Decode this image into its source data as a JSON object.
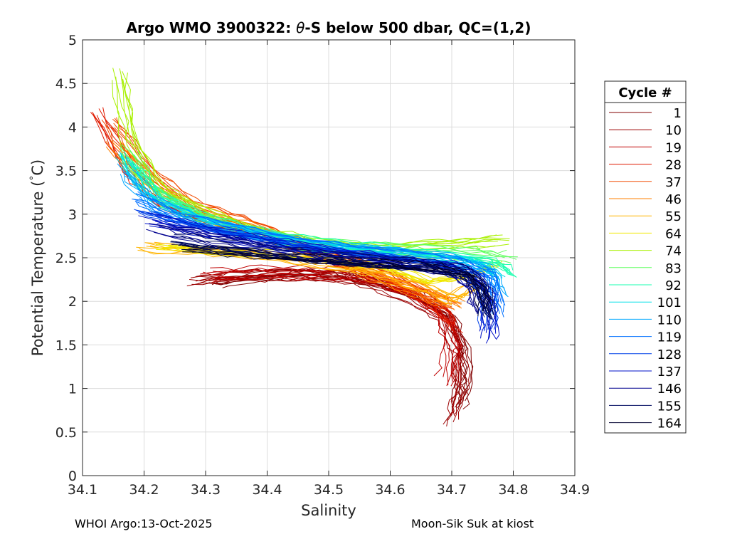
{
  "chart_data": {
    "type": "line",
    "title_prefix": "Argo WMO 3900322: ",
    "title_theta": "θ",
    "title_suffix": "-S below 500 dbar,  QC=(1,2)",
    "xlabel": "Salinity",
    "ylabel_main": "Potential Temperature (",
    "ylabel_deg": "°",
    "ylabel_unit": "C)",
    "xlim": [
      34.1,
      34.9
    ],
    "ylim": [
      0,
      5
    ],
    "x_ticks": [
      "34.1",
      "34.2",
      "34.3",
      "34.4",
      "34.5",
      "34.6",
      "34.7",
      "34.8",
      "34.9"
    ],
    "y_ticks": [
      "0",
      "0.5",
      "1",
      "1.5",
      "2",
      "2.5",
      "3",
      "3.5",
      "4",
      "4.5",
      "5"
    ],
    "grid": true,
    "legend_position": "outside-right",
    "legend_title": "Cycle #",
    "legend": [
      {
        "label": "1",
        "color": "#800000"
      },
      {
        "label": "10",
        "color": "#9b0000"
      },
      {
        "label": "19",
        "color": "#bf0000"
      },
      {
        "label": "28",
        "color": "#e01a00"
      },
      {
        "label": "37",
        "color": "#f24a00"
      },
      {
        "label": "46",
        "color": "#ff7f00"
      },
      {
        "label": "55",
        "color": "#ffb400"
      },
      {
        "label": "64",
        "color": "#f0e800"
      },
      {
        "label": "74",
        "color": "#a8f000"
      },
      {
        "label": "83",
        "color": "#5fff5f"
      },
      {
        "label": "92",
        "color": "#1affb0"
      },
      {
        "label": "101",
        "color": "#00e0e8"
      },
      {
        "label": "110",
        "color": "#00a8ff"
      },
      {
        "label": "119",
        "color": "#0070ff"
      },
      {
        "label": "128",
        "color": "#0040e8"
      },
      {
        "label": "137",
        "color": "#0010c8"
      },
      {
        "label": "146",
        "color": "#00008f"
      },
      {
        "label": "155",
        "color": "#000a60"
      },
      {
        "label": "164",
        "color": "#000030"
      }
    ],
    "series": [
      {
        "name": "1",
        "color": "#800000",
        "profiles": 8,
        "points": [
          [
            34.31,
            2.2
          ],
          [
            34.38,
            2.27
          ],
          [
            34.45,
            2.3
          ],
          [
            34.52,
            2.28
          ],
          [
            34.58,
            2.2
          ],
          [
            34.64,
            2.05
          ],
          [
            34.69,
            1.85
          ],
          [
            34.715,
            1.5
          ],
          [
            34.72,
            1.1
          ],
          [
            34.71,
            0.8
          ]
        ]
      },
      {
        "name": "10",
        "color": "#9b0000",
        "profiles": 8,
        "points": [
          [
            34.28,
            2.25
          ],
          [
            34.36,
            2.3
          ],
          [
            34.44,
            2.32
          ],
          [
            34.52,
            2.3
          ],
          [
            34.58,
            2.22
          ],
          [
            34.64,
            2.05
          ],
          [
            34.69,
            1.85
          ],
          [
            34.715,
            1.45
          ],
          [
            34.715,
            1.0
          ],
          [
            34.7,
            0.65
          ]
        ]
      },
      {
        "name": "19",
        "color": "#bf0000",
        "profiles": 8,
        "points": [
          [
            34.3,
            2.3
          ],
          [
            34.38,
            2.33
          ],
          [
            34.46,
            2.33
          ],
          [
            34.53,
            2.3
          ],
          [
            34.6,
            2.2
          ],
          [
            34.65,
            2.05
          ],
          [
            34.69,
            1.8
          ],
          [
            34.7,
            1.45
          ],
          [
            34.69,
            1.1
          ]
        ]
      },
      {
        "name": "28",
        "color": "#e01a00",
        "profiles": 8,
        "points": [
          [
            34.13,
            4.15
          ],
          [
            34.18,
            3.5
          ],
          [
            34.24,
            3.1
          ],
          [
            34.32,
            2.9
          ],
          [
            34.4,
            2.75
          ],
          [
            34.48,
            2.55
          ],
          [
            34.56,
            2.35
          ],
          [
            34.63,
            2.15
          ],
          [
            34.68,
            1.95
          ],
          [
            34.71,
            1.7
          ]
        ]
      },
      {
        "name": "37",
        "color": "#f24a00",
        "profiles": 8,
        "points": [
          [
            34.14,
            4.05
          ],
          [
            34.2,
            3.5
          ],
          [
            34.27,
            3.1
          ],
          [
            34.35,
            2.92
          ],
          [
            34.42,
            2.72
          ],
          [
            34.5,
            2.52
          ],
          [
            34.58,
            2.32
          ],
          [
            34.64,
            2.12
          ],
          [
            34.69,
            1.95
          ]
        ]
      },
      {
        "name": "46",
        "color": "#ff7f00",
        "profiles": 8,
        "points": [
          [
            34.15,
            3.8
          ],
          [
            34.22,
            3.3
          ],
          [
            34.3,
            3.0
          ],
          [
            34.38,
            2.82
          ],
          [
            34.46,
            2.6
          ],
          [
            34.54,
            2.4
          ],
          [
            34.61,
            2.2
          ],
          [
            34.67,
            2.05
          ],
          [
            34.71,
            1.95
          ]
        ]
      },
      {
        "name": "55",
        "color": "#ffb400",
        "profiles": 8,
        "points": [
          [
            34.2,
            2.65
          ],
          [
            34.3,
            2.6
          ],
          [
            34.4,
            2.55
          ],
          [
            34.5,
            2.45
          ],
          [
            34.58,
            2.35
          ],
          [
            34.65,
            2.2
          ],
          [
            34.7,
            2.05
          ],
          [
            34.74,
            2.2
          ]
        ]
      },
      {
        "name": "64",
        "color": "#f0e800",
        "profiles": 8,
        "points": [
          [
            34.22,
            2.6
          ],
          [
            34.32,
            2.55
          ],
          [
            34.42,
            2.5
          ],
          [
            34.52,
            2.42
          ],
          [
            34.6,
            2.35
          ],
          [
            34.66,
            2.2
          ],
          [
            34.72,
            2.25
          ],
          [
            34.77,
            2.4
          ]
        ]
      },
      {
        "name": "74",
        "color": "#a8f000",
        "profiles": 8,
        "points": [
          [
            34.16,
            4.6
          ],
          [
            34.18,
            3.8
          ],
          [
            34.22,
            3.3
          ],
          [
            34.3,
            3.0
          ],
          [
            34.38,
            2.8
          ],
          [
            34.48,
            2.65
          ],
          [
            34.58,
            2.6
          ],
          [
            34.68,
            2.65
          ],
          [
            34.78,
            2.7
          ]
        ]
      },
      {
        "name": "83",
        "color": "#5fff5f",
        "profiles": 8,
        "points": [
          [
            34.17,
            3.75
          ],
          [
            34.21,
            3.3
          ],
          [
            34.28,
            3.0
          ],
          [
            34.36,
            2.82
          ],
          [
            34.45,
            2.68
          ],
          [
            34.55,
            2.62
          ],
          [
            34.65,
            2.58
          ],
          [
            34.74,
            2.55
          ],
          [
            34.79,
            2.5
          ]
        ]
      },
      {
        "name": "92",
        "color": "#1affb0",
        "profiles": 8,
        "points": [
          [
            34.17,
            3.6
          ],
          [
            34.22,
            3.2
          ],
          [
            34.29,
            2.95
          ],
          [
            34.38,
            2.78
          ],
          [
            34.48,
            2.65
          ],
          [
            34.58,
            2.58
          ],
          [
            34.68,
            2.52
          ],
          [
            34.76,
            2.45
          ],
          [
            34.79,
            2.3
          ]
        ]
      },
      {
        "name": "101",
        "color": "#00e0e8",
        "profiles": 8,
        "points": [
          [
            34.17,
            3.65
          ],
          [
            34.21,
            3.2
          ],
          [
            34.28,
            2.95
          ],
          [
            34.37,
            2.78
          ],
          [
            34.47,
            2.65
          ],
          [
            34.57,
            2.57
          ],
          [
            34.67,
            2.5
          ],
          [
            34.75,
            2.42
          ],
          [
            34.78,
            2.25
          ]
        ]
      },
      {
        "name": "110",
        "color": "#00a8ff",
        "profiles": 8,
        "points": [
          [
            34.17,
            3.5
          ],
          [
            34.22,
            3.1
          ],
          [
            34.3,
            2.9
          ],
          [
            34.4,
            2.74
          ],
          [
            34.5,
            2.62
          ],
          [
            34.6,
            2.55
          ],
          [
            34.7,
            2.48
          ],
          [
            34.76,
            2.38
          ],
          [
            34.78,
            2.1
          ]
        ]
      },
      {
        "name": "119",
        "color": "#0070ff",
        "profiles": 8,
        "points": [
          [
            34.18,
            3.2
          ],
          [
            34.24,
            2.98
          ],
          [
            34.32,
            2.85
          ],
          [
            34.42,
            2.7
          ],
          [
            34.52,
            2.6
          ],
          [
            34.62,
            2.52
          ],
          [
            34.7,
            2.45
          ],
          [
            34.76,
            2.3
          ],
          [
            34.77,
            1.9
          ]
        ]
      },
      {
        "name": "128",
        "color": "#0040e8",
        "profiles": 8,
        "points": [
          [
            34.2,
            3.05
          ],
          [
            34.27,
            2.9
          ],
          [
            34.36,
            2.78
          ],
          [
            34.46,
            2.65
          ],
          [
            34.56,
            2.55
          ],
          [
            34.66,
            2.45
          ],
          [
            34.73,
            2.35
          ],
          [
            34.76,
            2.1
          ],
          [
            34.76,
            1.7
          ]
        ]
      },
      {
        "name": "137",
        "color": "#0010c8",
        "profiles": 8,
        "points": [
          [
            34.21,
            2.95
          ],
          [
            34.3,
            2.8
          ],
          [
            34.4,
            2.68
          ],
          [
            34.5,
            2.56
          ],
          [
            34.6,
            2.47
          ],
          [
            34.69,
            2.4
          ],
          [
            34.74,
            2.25
          ],
          [
            34.76,
            1.95
          ],
          [
            34.76,
            1.6
          ]
        ]
      },
      {
        "name": "146",
        "color": "#00008f",
        "profiles": 8,
        "points": [
          [
            34.22,
            2.85
          ],
          [
            34.32,
            2.72
          ],
          [
            34.42,
            2.6
          ],
          [
            34.52,
            2.5
          ],
          [
            34.62,
            2.44
          ],
          [
            34.7,
            2.38
          ],
          [
            34.74,
            2.2
          ],
          [
            34.75,
            1.9
          ]
        ]
      },
      {
        "name": "155",
        "color": "#000a60",
        "profiles": 8,
        "points": [
          [
            34.25,
            2.72
          ],
          [
            34.35,
            2.62
          ],
          [
            34.45,
            2.53
          ],
          [
            34.55,
            2.47
          ],
          [
            34.65,
            2.42
          ],
          [
            34.72,
            2.35
          ],
          [
            34.75,
            2.15
          ],
          [
            34.76,
            1.85
          ]
        ]
      },
      {
        "name": "164",
        "color": "#000030",
        "profiles": 8,
        "points": [
          [
            34.27,
            2.62
          ],
          [
            34.37,
            2.56
          ],
          [
            34.47,
            2.5
          ],
          [
            34.57,
            2.46
          ],
          [
            34.66,
            2.42
          ],
          [
            34.72,
            2.35
          ],
          [
            34.75,
            2.2
          ],
          [
            34.76,
            1.9
          ]
        ]
      }
    ]
  },
  "footer": {
    "left": "WHOI Argo:13-Oct-2025",
    "right": "Moon-Sik Suk at kiost"
  }
}
